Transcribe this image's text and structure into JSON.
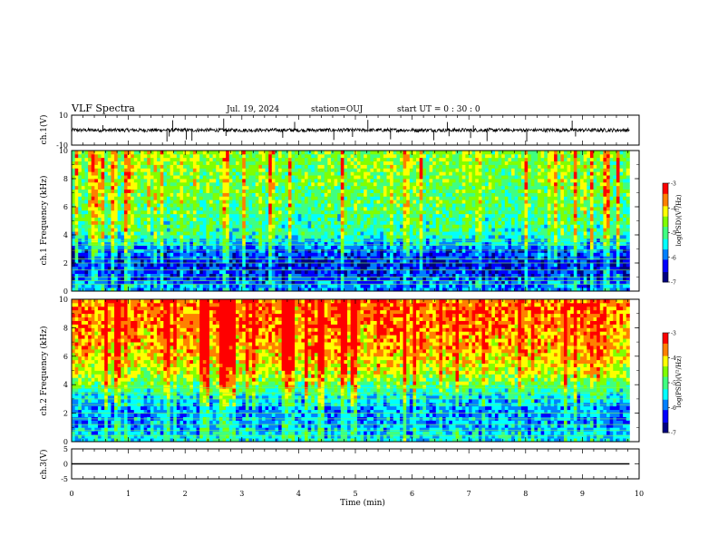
{
  "header": {
    "title": "VLF Spectra",
    "date": "Jul. 19, 2024",
    "station": "station=OUJ",
    "start": "start UT =  0 : 30 : 0"
  },
  "colors": {
    "colormap": [
      "#000080",
      "#0000ff",
      "#0080ff",
      "#00ffff",
      "#40ff80",
      "#80ff00",
      "#ffff00",
      "#ff8000",
      "#ff0000",
      "#ffffff"
    ]
  },
  "chart_data": [
    {
      "type": "line",
      "panel": "ch1_waveform",
      "ylabel": "ch.1(V)",
      "ylim": [
        -10,
        10
      ],
      "yticks": [
        "10",
        "-10"
      ],
      "baseline": 0,
      "noise_amplitude": 1.2,
      "spikes_min": [
        0.55,
        1.68,
        1.72,
        1.78,
        2.02,
        2.12,
        2.68,
        2.72,
        3.72,
        3.93,
        4.62,
        4.95,
        5.22,
        5.62,
        6.38,
        6.62,
        6.65,
        7.03,
        7.08,
        7.32,
        8.02,
        8.82,
        8.88
      ]
    },
    {
      "type": "heatmap",
      "panel": "ch1_spectrogram",
      "ylabel": "ch.1 Frequency (kHz)",
      "xlim": [
        0,
        9.83
      ],
      "ylim": [
        0,
        10
      ],
      "yticks": [
        "0",
        "2",
        "4",
        "6",
        "8",
        "10"
      ],
      "colorbar": {
        "label": "log(PSD)(V²/Hz)",
        "ticks": [
          "-3",
          "-4",
          "-5",
          "-6",
          "-7"
        ],
        "range": [
          -7,
          -3
        ]
      },
      "profile_log_psd": [
        [
          0,
          -5.8
        ],
        [
          1,
          -6.2
        ],
        [
          2,
          -6.4
        ],
        [
          3,
          -6.0
        ],
        [
          4,
          -5.2
        ],
        [
          6,
          -4.9
        ],
        [
          8,
          -4.7
        ],
        [
          10,
          -4.6
        ]
      ],
      "horizontal_lines_khz": [
        0.5,
        0.75,
        1.0,
        1.5,
        2.0,
        2.3,
        2.9,
        3.3,
        3.6
      ]
    },
    {
      "type": "heatmap",
      "panel": "ch2_spectrogram",
      "ylabel": "ch.2 Frequency (kHz)",
      "xlim": [
        0,
        9.83
      ],
      "ylim": [
        0,
        10
      ],
      "yticks": [
        "0",
        "2",
        "4",
        "6",
        "8",
        "10"
      ],
      "colorbar": {
        "label": "log(PSD)(V²/Hz)",
        "ticks": [
          "-3",
          "-4",
          "-5",
          "-6",
          "-7"
        ],
        "range": [
          -7,
          -3
        ]
      },
      "profile_log_psd": [
        [
          0,
          -5.4
        ],
        [
          1,
          -5.7
        ],
        [
          2,
          -5.9
        ],
        [
          3,
          -5.6
        ],
        [
          4,
          -4.8
        ],
        [
          5,
          -4.3
        ],
        [
          6,
          -4.0
        ],
        [
          8,
          -3.7
        ],
        [
          10,
          -3.6
        ]
      ],
      "horizontal_lines_khz": [
        0.4,
        0.8,
        1.2,
        1.6,
        2.0,
        2.6,
        3.0,
        3.4,
        3.8
      ]
    },
    {
      "type": "line",
      "panel": "ch3_waveform",
      "ylabel": "ch.3(V)",
      "ylim": [
        -5,
        5
      ],
      "yticks": [
        "5",
        "0",
        "-5"
      ],
      "value": 0,
      "x": [
        0,
        9.83
      ]
    }
  ],
  "xaxis": {
    "label": "Time (min)",
    "range": [
      0,
      10
    ],
    "ticks": [
      "0",
      "1",
      "2",
      "3",
      "4",
      "5",
      "6",
      "7",
      "8",
      "9",
      "10"
    ]
  }
}
